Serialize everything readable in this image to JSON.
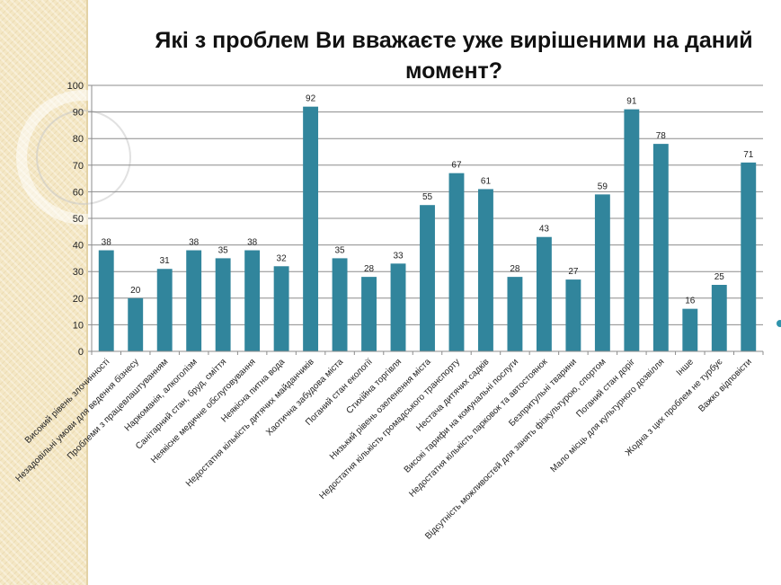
{
  "slide": {
    "title": "Які з проблем Ви вважаєте уже вирішеними на даний момент?",
    "bar_color": "#31859c",
    "panel_color": "#f4e7c4"
  },
  "chart_data": {
    "type": "bar",
    "title": "Які з проблем Ви вважаєте уже вирішеними на даний момент?",
    "xlabel": "",
    "ylabel": "",
    "ylim": [
      0,
      100
    ],
    "yticks": [
      0,
      10,
      20,
      30,
      40,
      50,
      60,
      70,
      80,
      90,
      100
    ],
    "grid": true,
    "legend": "none",
    "categories": [
      "Високий рівень злочинності",
      "Незадовільні умови для ведення бізнесу",
      "Проблеми з працевлаштуванням",
      "Наркоманія, алкоголізм",
      "Санітарний стан, бруд, сміття",
      "Неякісне медичне обслуговування",
      "Неякісна питна вода",
      "Недостатня кількість дитячих майданчиків",
      "Хаотична забудова міста",
      "Поганий стан екології",
      "Стихійна торгівля",
      "Низький рівень озеленення міста",
      "Недостатня кількість громадського транспорту",
      "Нестача дитячих садків",
      "Високі тарифи на комунальні послуги",
      "Недостатня кількість парковок та автостоянок",
      "Безпритульні тварини",
      "Відсутність можливостей для занять фізкультурою, спортом",
      "Поганий стан доріг",
      "Мало місць для культурного дозвілля",
      "Інше",
      "Жодна з цих проблем не турбує",
      "Важко відповісти"
    ],
    "values": [
      38,
      20,
      31,
      38,
      35,
      38,
      32,
      92,
      35,
      28,
      33,
      55,
      67,
      61,
      28,
      43,
      27,
      59,
      91,
      78,
      16,
      25,
      71
    ]
  }
}
